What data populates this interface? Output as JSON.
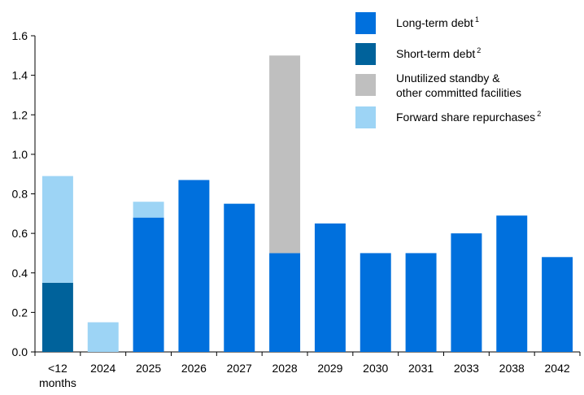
{
  "chart_data": {
    "type": "bar",
    "stacked": true,
    "categories": [
      "<12 months",
      "2024",
      "2025",
      "2026",
      "2027",
      "2028",
      "2029",
      "2030",
      "2031",
      "2033",
      "2038",
      "2042"
    ],
    "category_lines": [
      [
        "<12",
        "months"
      ],
      [
        "2024"
      ],
      [
        "2025"
      ],
      [
        "2026"
      ],
      [
        "2027"
      ],
      [
        "2028"
      ],
      [
        "2029"
      ],
      [
        "2030"
      ],
      [
        "2031"
      ],
      [
        "2033"
      ],
      [
        "2038"
      ],
      [
        "2042"
      ]
    ],
    "series": [
      {
        "name": "Short-term debt",
        "superscript": "2",
        "color": "#00629b",
        "values": [
          0.35,
          0,
          0,
          0,
          0,
          0,
          0,
          0,
          0,
          0,
          0,
          0
        ]
      },
      {
        "name": "Long-term debt",
        "superscript": "1",
        "color": "#0070dd",
        "values": [
          0,
          0,
          0.68,
          0.87,
          0.75,
          0.5,
          0.65,
          0.5,
          0.5,
          0.6,
          0.69,
          0.48
        ]
      },
      {
        "name": "Unutilized standby & other committed facilities",
        "name_lines": [
          "Unutilized standby &",
          "other committed facilities"
        ],
        "superscript": "",
        "color": "#bfbfbf",
        "values": [
          0,
          0,
          0,
          0,
          0,
          1.0,
          0,
          0,
          0,
          0,
          0,
          0
        ]
      },
      {
        "name": "Forward share repurchases",
        "superscript": "2",
        "color": "#9dd4f5",
        "values": [
          0.54,
          0.15,
          0.08,
          0,
          0,
          0,
          0,
          0,
          0,
          0,
          0,
          0
        ]
      }
    ],
    "legend_order": [
      1,
      0,
      2,
      3
    ],
    "legend_position": "top-right",
    "ylim": [
      0,
      1.6
    ],
    "yticks": [
      "0.0",
      "0.2",
      "0.4",
      "0.6",
      "0.8",
      "1.0",
      "1.2",
      "1.4",
      "1.6"
    ],
    "grid": false,
    "title": "",
    "xlabel": "",
    "ylabel": ""
  }
}
